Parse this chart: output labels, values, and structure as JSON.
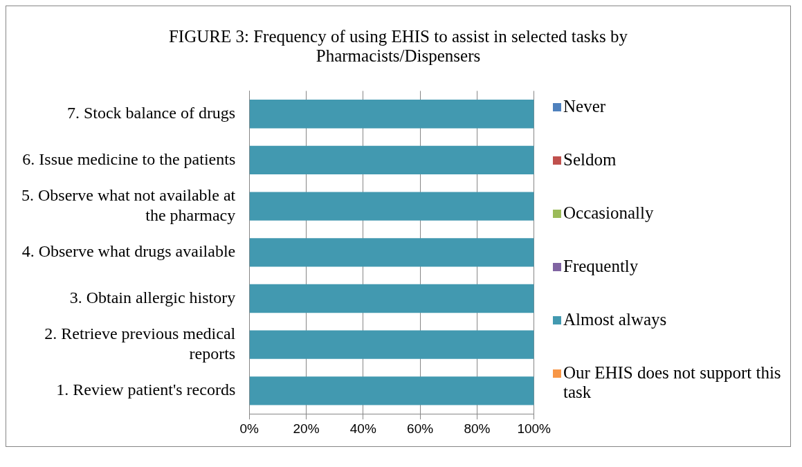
{
  "chart_data": {
    "type": "bar",
    "orientation": "horizontal",
    "stacked": true,
    "title": "FIGURE 3: Frequency of using EHIS to assist in selected tasks by Pharmacists/Dispensers",
    "categories": [
      "7. Stock balance of drugs",
      "6. Issue medicine to the patients",
      "5. Observe what not available at the pharmacy",
      "4. Observe what drugs available",
      "3. Obtain allergic history",
      "2. Retrieve previous medical reports",
      "1. Review patient's records"
    ],
    "series": [
      {
        "name": "Never",
        "color": "#4f81bd",
        "values": [
          0,
          0,
          0,
          0,
          0,
          0,
          0
        ]
      },
      {
        "name": "Seldom",
        "color": "#c0504d",
        "values": [
          0,
          0,
          0,
          0,
          0,
          0,
          0
        ]
      },
      {
        "name": "Occasionally",
        "color": "#9bbb59",
        "values": [
          0,
          0,
          0,
          0,
          0,
          0,
          0
        ]
      },
      {
        "name": "Frequently",
        "color": "#8064a2",
        "values": [
          0,
          0,
          0,
          0,
          0,
          0,
          0
        ]
      },
      {
        "name": "Almost always",
        "color": "#4299b0",
        "values": [
          100,
          100,
          100,
          100,
          100,
          100,
          100
        ]
      },
      {
        "name": "Our EHIS does not support this task",
        "color": "#f79646",
        "values": [
          0,
          0,
          0,
          0,
          0,
          0,
          0
        ]
      }
    ],
    "xlim": [
      0,
      100
    ],
    "xticks": [
      {
        "value": 0,
        "label": "0%"
      },
      {
        "value": 20,
        "label": "20%"
      },
      {
        "value": 40,
        "label": "40%"
      },
      {
        "value": 60,
        "label": "60%"
      },
      {
        "value": 80,
        "label": "80%"
      },
      {
        "value": 100,
        "label": "100%"
      }
    ],
    "grid": "x",
    "legend": "right"
  }
}
